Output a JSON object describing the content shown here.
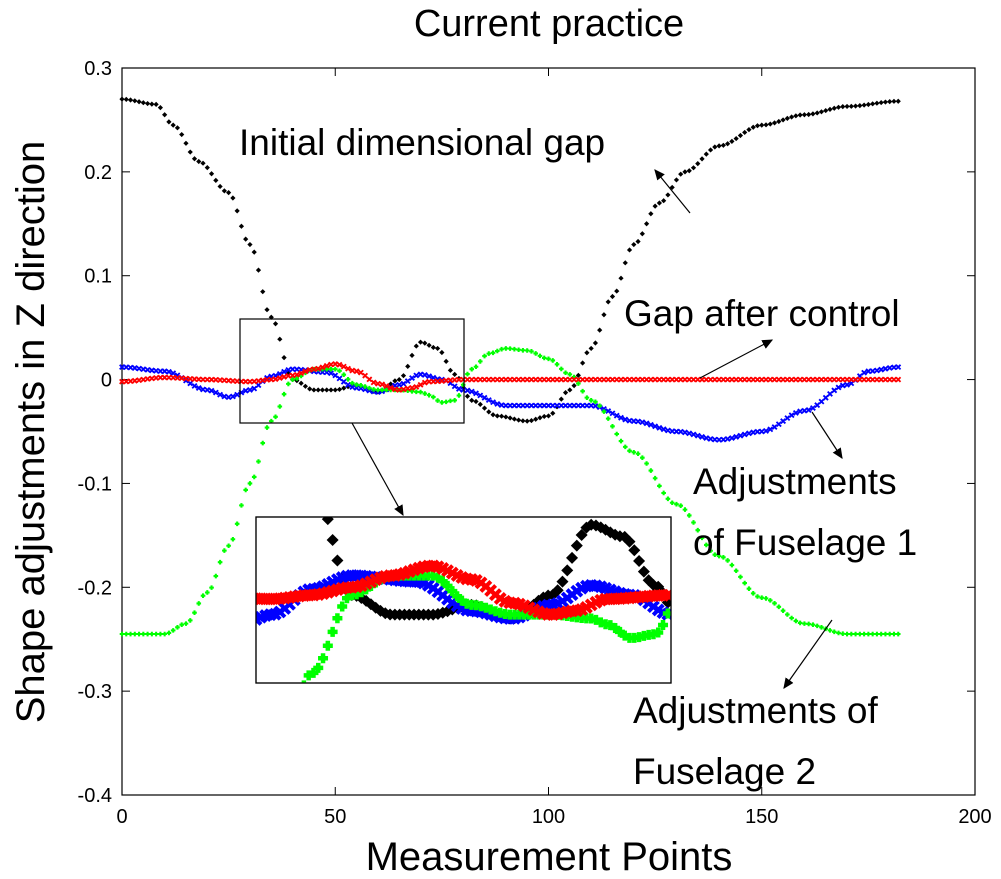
{
  "chart_data": {
    "type": "scatter",
    "title": "Current practice",
    "xlabel": "Measurement Points",
    "ylabel": "Shape adjustments in Z direction",
    "xlim": [
      0,
      200
    ],
    "ylim": [
      -0.4,
      0.3
    ],
    "grid": false,
    "x_ticks": [
      "0",
      "50",
      "100",
      "150",
      "200"
    ],
    "y_ticks": [
      "0.3",
      "0.2",
      "0.1",
      "0",
      "-0.1",
      "-0.2",
      "-0.3",
      "-0.4"
    ],
    "x_range_data": [
      0,
      182
    ],
    "series": [
      {
        "color": "#000000",
        "marker": "diamond",
        "knots": [
          [
            0,
            0.27
          ],
          [
            8,
            0.265
          ],
          [
            12,
            0.245
          ],
          [
            18,
            0.21
          ],
          [
            25,
            0.18
          ],
          [
            30,
            0.13
          ],
          [
            35,
            0.06
          ],
          [
            40,
            0.0
          ],
          [
            45,
            -0.01
          ],
          [
            50,
            -0.01
          ],
          [
            55,
            -0.005
          ],
          [
            60,
            -0.012
          ],
          [
            65,
            0.0
          ],
          [
            70,
            0.036
          ],
          [
            74,
            0.03
          ],
          [
            78,
            0.005
          ],
          [
            82,
            -0.02
          ],
          [
            88,
            -0.035
          ],
          [
            95,
            -0.04
          ],
          [
            100,
            -0.035
          ],
          [
            105,
            -0.01
          ],
          [
            110,
            0.03
          ],
          [
            115,
            0.08
          ],
          [
            120,
            0.13
          ],
          [
            126,
            0.17
          ],
          [
            132,
            0.2
          ],
          [
            140,
            0.225
          ],
          [
            150,
            0.245
          ],
          [
            160,
            0.255
          ],
          [
            170,
            0.263
          ],
          [
            182,
            0.268
          ]
        ]
      },
      {
        "color": "#0000ff",
        "marker": "cross",
        "knots": [
          [
            0,
            0.012
          ],
          [
            10,
            0.008
          ],
          [
            20,
            -0.01
          ],
          [
            25,
            -0.017
          ],
          [
            30,
            -0.01
          ],
          [
            35,
            0.003
          ],
          [
            40,
            0.01
          ],
          [
            48,
            0.007
          ],
          [
            55,
            -0.008
          ],
          [
            60,
            -0.012
          ],
          [
            65,
            -0.005
          ],
          [
            70,
            0.005
          ],
          [
            75,
            0.0
          ],
          [
            80,
            -0.01
          ],
          [
            90,
            -0.025
          ],
          [
            100,
            -0.025
          ],
          [
            110,
            -0.025
          ],
          [
            120,
            -0.04
          ],
          [
            130,
            -0.05
          ],
          [
            140,
            -0.058
          ],
          [
            150,
            -0.05
          ],
          [
            160,
            -0.03
          ],
          [
            170,
            -0.005
          ],
          [
            175,
            0.008
          ],
          [
            182,
            0.012
          ]
        ]
      },
      {
        "color": "#00ff00",
        "marker": "plus",
        "knots": [
          [
            0,
            -0.245
          ],
          [
            10,
            -0.245
          ],
          [
            15,
            -0.235
          ],
          [
            20,
            -0.205
          ],
          [
            25,
            -0.16
          ],
          [
            30,
            -0.1
          ],
          [
            35,
            -0.04
          ],
          [
            40,
            0.0
          ],
          [
            45,
            0.01
          ],
          [
            50,
            0.01
          ],
          [
            55,
            -0.005
          ],
          [
            60,
            -0.01
          ],
          [
            65,
            -0.01
          ],
          [
            70,
            -0.012
          ],
          [
            72,
            -0.015
          ],
          [
            75,
            -0.022
          ],
          [
            78,
            -0.02
          ],
          [
            82,
            0.01
          ],
          [
            86,
            0.025
          ],
          [
            90,
            0.03
          ],
          [
            95,
            0.028
          ],
          [
            100,
            0.02
          ],
          [
            105,
            0.005
          ],
          [
            110,
            -0.02
          ],
          [
            120,
            -0.07
          ],
          [
            130,
            -0.12
          ],
          [
            140,
            -0.17
          ],
          [
            150,
            -0.21
          ],
          [
            160,
            -0.235
          ],
          [
            170,
            -0.245
          ],
          [
            182,
            -0.245
          ]
        ]
      },
      {
        "color": "#ff0000",
        "marker": "cross",
        "knots": [
          [
            0,
            -0.002
          ],
          [
            10,
            0.002
          ],
          [
            20,
            0.0
          ],
          [
            30,
            -0.002
          ],
          [
            35,
            0.0
          ],
          [
            40,
            0.004
          ],
          [
            45,
            0.01
          ],
          [
            50,
            0.015
          ],
          [
            55,
            0.008
          ],
          [
            60,
            -0.004
          ],
          [
            65,
            -0.01
          ],
          [
            68,
            -0.008
          ],
          [
            72,
            -0.002
          ],
          [
            80,
            0.0
          ],
          [
            100,
            0.0
          ],
          [
            120,
            0.0
          ],
          [
            140,
            0.0
          ],
          [
            160,
            0.0
          ],
          [
            170,
            0.0
          ],
          [
            182,
            0.0
          ]
        ]
      }
    ],
    "annotations": [
      {
        "text": "Initial dimensional gap"
      },
      {
        "text": "Gap after control"
      },
      {
        "text": "Adjustments"
      },
      {
        "text": "of Fuselage 1"
      },
      {
        "text": "Adjustments of"
      },
      {
        "text": "Fuselage 2"
      }
    ],
    "inset": {
      "xlim": [
        28,
        80
      ],
      "ylim": [
        -0.045,
        0.04
      ]
    }
  }
}
